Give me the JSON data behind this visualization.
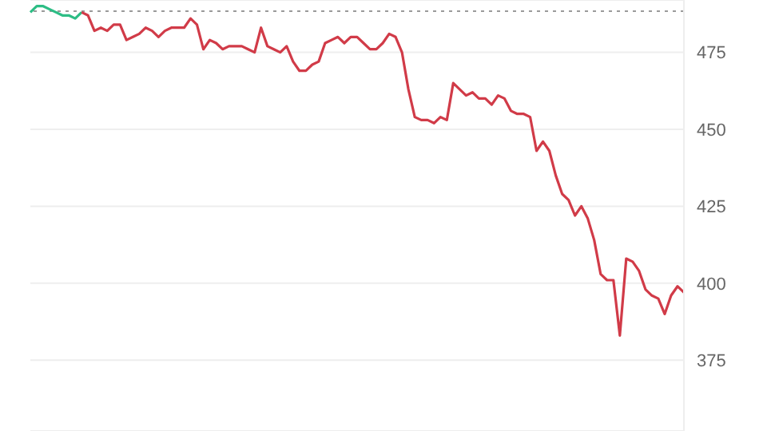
{
  "chart_data": {
    "type": "line",
    "categories": [
      null,
      null,
      null,
      null,
      null,
      null,
      null,
      null,
      null,
      null,
      null,
      null,
      null,
      null,
      null,
      null,
      null,
      null,
      null,
      null,
      null,
      null,
      null,
      null,
      null,
      null,
      null,
      null,
      null,
      null,
      null,
      null,
      null,
      null,
      null,
      null,
      null,
      null,
      null,
      null,
      null,
      null,
      null,
      null,
      null,
      null,
      null,
      null,
      null,
      null,
      null,
      null,
      null,
      null,
      null,
      null,
      null,
      null,
      null,
      null,
      null,
      null,
      null,
      null,
      null,
      null,
      null,
      null,
      null,
      null,
      null,
      null,
      null,
      null,
      null,
      null,
      null,
      null,
      null,
      null,
      null,
      null,
      null,
      null,
      null,
      null,
      null,
      null,
      null,
      null,
      null,
      null,
      null,
      null,
      null,
      null,
      null,
      null,
      null,
      null,
      null,
      null,
      null
    ],
    "series": [
      {
        "color": "#2dbd85",
        "values": [
          488,
          490,
          490,
          489,
          488,
          487,
          487,
          486,
          488,
          null,
          null,
          null,
          null,
          null,
          null,
          null,
          null,
          null,
          null,
          null,
          null,
          null,
          null,
          null,
          null,
          null,
          null,
          null,
          null,
          null,
          null,
          null,
          null,
          null,
          null,
          null,
          null,
          null,
          null,
          null,
          null,
          null,
          null,
          null,
          null,
          null,
          null,
          null,
          null,
          null,
          null,
          null,
          null,
          null,
          null,
          null,
          null,
          null,
          null,
          null,
          null,
          null,
          null,
          null,
          null,
          null,
          null,
          null,
          null,
          null,
          null,
          null,
          null,
          null,
          null,
          null,
          null,
          null,
          null,
          null,
          null,
          null,
          null,
          null,
          null,
          null,
          null,
          null,
          null,
          null,
          null,
          null,
          null,
          null,
          null,
          null,
          null,
          null,
          null,
          null,
          null,
          null,
          null
        ]
      },
      {
        "color": "#d13b48",
        "values": [
          null,
          null,
          null,
          null,
          null,
          null,
          null,
          null,
          488,
          487,
          482,
          483,
          482,
          484,
          484,
          479,
          480,
          481,
          483,
          482,
          480,
          482,
          483,
          483,
          483,
          486,
          484,
          476,
          479,
          478,
          476,
          477,
          477,
          477,
          476,
          475,
          483,
          477,
          476,
          475,
          477,
          472,
          469,
          469,
          471,
          472,
          478,
          479,
          480,
          478,
          480,
          480,
          478,
          476,
          476,
          478,
          481,
          480,
          475,
          463,
          454,
          453,
          453,
          452,
          454,
          453,
          465,
          463,
          461,
          462,
          460,
          460,
          458,
          461,
          460,
          456,
          455,
          455,
          454,
          443,
          446,
          443,
          435,
          429,
          427,
          422,
          425,
          421,
          414,
          403,
          401,
          401,
          383,
          408,
          407,
          404,
          398,
          396,
          395,
          390,
          396,
          399,
          397
        ]
      }
    ],
    "ylim": [
      352,
      492
    ],
    "yticks": [
      375,
      400,
      425,
      450,
      475
    ],
    "grid": "y",
    "line_style": "solid",
    "marker": "none",
    "ref_lines": [
      {
        "axis": "y",
        "value": 488.4,
        "color": "#9a9a9a",
        "line_style": "dotted"
      }
    ]
  }
}
